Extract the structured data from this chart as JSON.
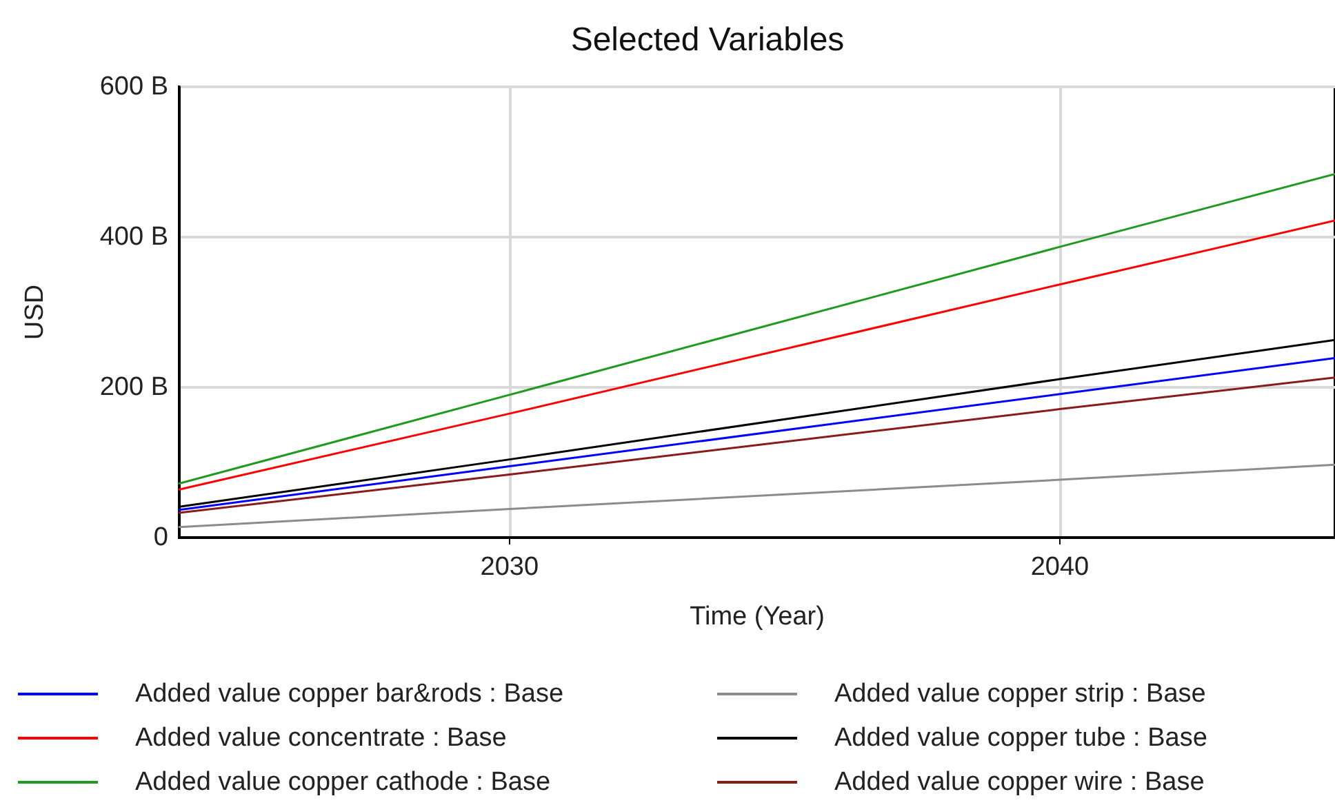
{
  "chart_data": {
    "type": "line",
    "title": "Selected Variables",
    "xlabel": "Time (Year)",
    "ylabel": "USD",
    "x": [
      2024,
      2030,
      2040,
      2045
    ],
    "xlim": [
      2024,
      2045
    ],
    "xticks": [
      2030,
      2040
    ],
    "ylim": [
      0,
      600
    ],
    "yticks": [
      0,
      {
        "value": 200,
        "label": "200 B"
      },
      {
        "value": 400,
        "label": "400 B"
      },
      {
        "value": 600,
        "label": "600 B"
      }
    ],
    "grid": true,
    "legend": "bottom",
    "marker": "none",
    "line_style": "solid",
    "series": [
      {
        "name": "Added value copper bar&rods : Base",
        "color": "#0000ff",
        "values": [
          37,
          95,
          191,
          239
        ]
      },
      {
        "name": "Added value concentrate : Base",
        "color": "#ff0000",
        "values": [
          64,
          165,
          337,
          422
        ]
      },
      {
        "name": "Added value copper cathode : Base",
        "color": "#1f9a1f",
        "values": [
          72,
          190,
          387,
          484
        ]
      },
      {
        "name": "Added value copper strip : Base",
        "color": "#8c8c8c",
        "values": [
          14,
          38,
          77,
          97
        ]
      },
      {
        "name": "Added value copper tube : Base",
        "color": "#000000",
        "values": [
          41,
          104,
          211,
          263
        ]
      },
      {
        "name": "Added value copper wire : Base",
        "color": "#8b1a1a",
        "values": [
          33,
          84,
          171,
          213
        ]
      }
    ]
  }
}
